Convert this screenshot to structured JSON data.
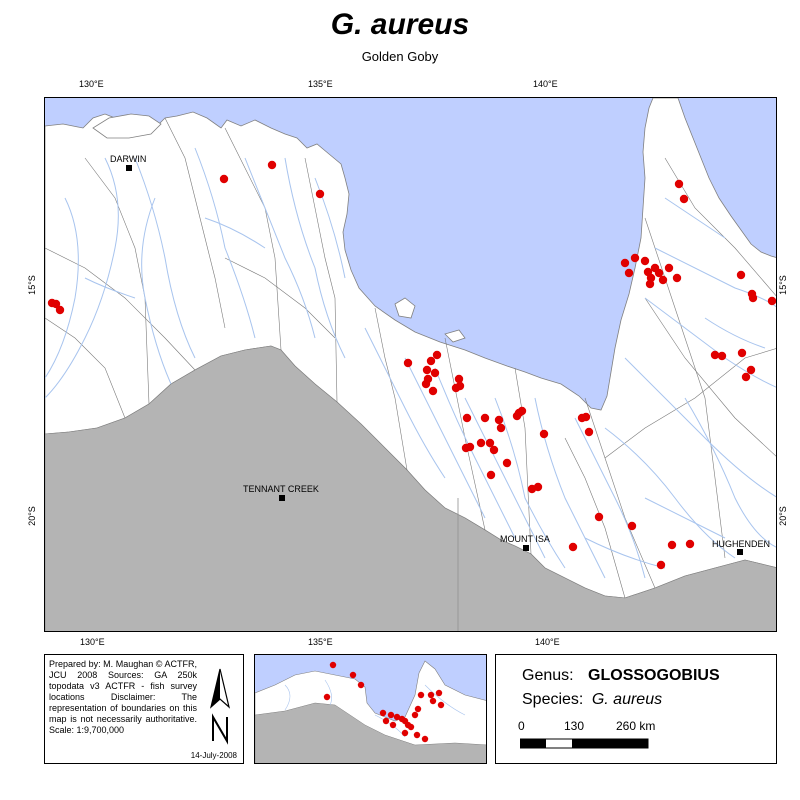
{
  "header": {
    "title": "G. aureus",
    "subtitle": "Golden Goby"
  },
  "graticule": {
    "top": [
      "130°E",
      "135°E",
      "140°E"
    ],
    "bottom": [
      "130°E",
      "135°E",
      "140°E"
    ],
    "left": [
      "15°S",
      "20°S"
    ],
    "right": [
      "15°S",
      "20°S"
    ]
  },
  "places": {
    "darwin": "DARWIN",
    "tennant_creek": "TENNANT CREEK",
    "mount_isa": "MOUNT ISA",
    "hughenden": "HUGHENDEN"
  },
  "colors": {
    "sea": "#bfcfff",
    "land_catchment": "#ffffff",
    "land_outside": "#b4b4b4",
    "rivers": "#a8c4ee",
    "boundaries": "#707070",
    "records": "#e00000"
  },
  "credits": {
    "text": "Prepared by: M. Maughan © ACTFR, JCU 2008 Sources: GA 250k topodata v3 ACTFR - fish survey locations Disclaimer: The representation of boundaries on this map is not necessarily authoritative. Scale: 1:9,700,000",
    "date": "14-July-2008",
    "north_arrow": "north-arrow-icon"
  },
  "taxon": {
    "genus_label": "Genus:",
    "genus": "GLOSSOGOBIUS",
    "species_label": "Species:",
    "species": "G. aureus"
  },
  "scalebar": {
    "labels": [
      "0",
      "130",
      "260 km"
    ]
  },
  "records": {
    "count_shown": 78
  }
}
